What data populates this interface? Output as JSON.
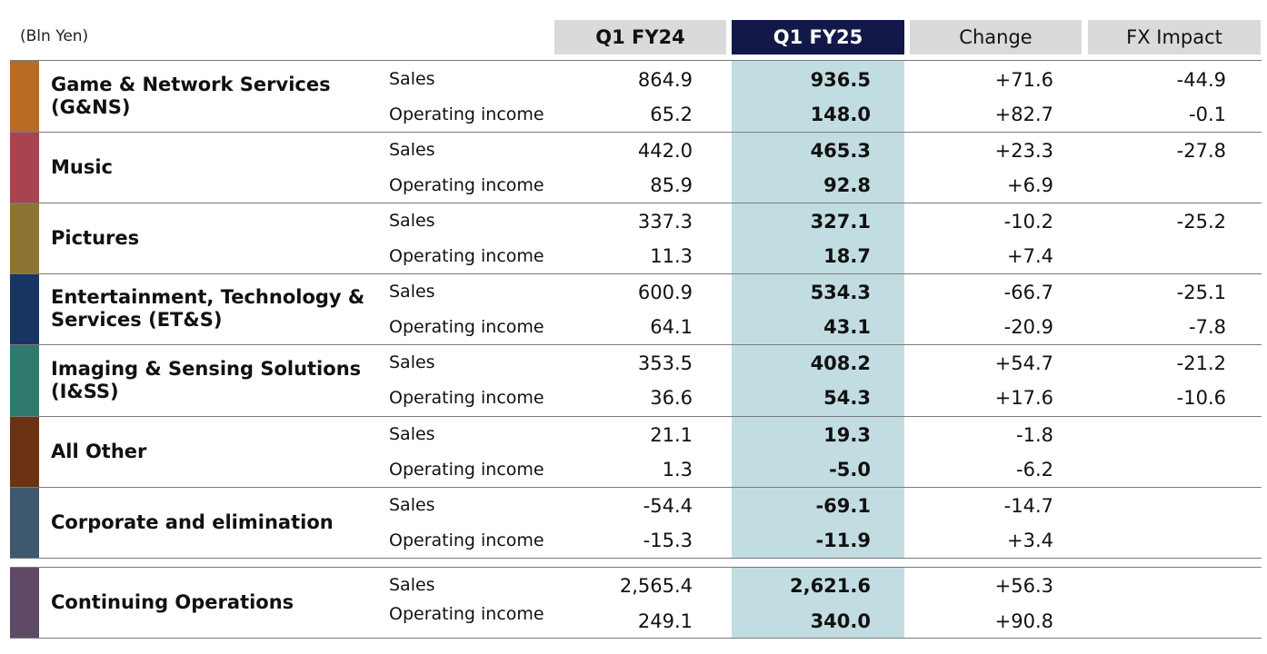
{
  "unit_label": "(Bln Yen)",
  "columns": [
    "Q1 FY24",
    "Q1 FY25",
    "Change",
    "FX Impact"
  ],
  "metrics": {
    "sales": "Sales",
    "oi": "Operating income"
  },
  "colors": {
    "header_bg": "#dadada",
    "header_current_bg": "#121848",
    "highlight_col": "#c2dde1",
    "seg_gns": "#b96b24",
    "seg_music": "#a8434f",
    "seg_pictures": "#8e7432",
    "seg_ets": "#183563",
    "seg_iss": "#2e7a6c",
    "seg_other": "#6b3314",
    "seg_corp": "#3e5870",
    "seg_cont": "#5e4a66"
  },
  "chart_data": {
    "type": "table",
    "title": "",
    "unit": "Bln Yen",
    "columns": [
      "Q1 FY24",
      "Q1 FY25",
      "Change",
      "FX Impact"
    ],
    "rows": [
      {
        "segment": "Game & Network Services (G&NS)",
        "segment_line1": "Game & Network Services",
        "segment_line2": "(G&NS)",
        "sales": [
          "864.9",
          "936.5",
          "+71.6",
          "-44.9"
        ],
        "oi": [
          "65.2",
          "148.0",
          "+82.7",
          "-0.1"
        ]
      },
      {
        "segment": "Music",
        "segment_line1": "Music",
        "segment_line2": "",
        "sales": [
          "442.0",
          "465.3",
          "+23.3",
          "-27.8"
        ],
        "oi": [
          "85.9",
          "92.8",
          "+6.9",
          ""
        ]
      },
      {
        "segment": "Pictures",
        "segment_line1": "Pictures",
        "segment_line2": "",
        "sales": [
          "337.3",
          "327.1",
          "-10.2",
          "-25.2"
        ],
        "oi": [
          "11.3",
          "18.7",
          "+7.4",
          ""
        ]
      },
      {
        "segment": "Entertainment, Technology & Services (ET&S)",
        "segment_line1": "Entertainment, Technology &",
        "segment_line2": "Services (ET&S)",
        "sales": [
          "600.9",
          "534.3",
          "-66.7",
          "-25.1"
        ],
        "oi": [
          "64.1",
          "43.1",
          "-20.9",
          "-7.8"
        ]
      },
      {
        "segment": "Imaging & Sensing Solutions (I&SS)",
        "segment_line1": "Imaging & Sensing Solutions",
        "segment_line2": "(I&SS)",
        "sales": [
          "353.5",
          "408.2",
          "+54.7",
          "-21.2"
        ],
        "oi": [
          "36.6",
          "54.3",
          "+17.6",
          "-10.6"
        ]
      },
      {
        "segment": "All Other",
        "segment_line1": "All Other",
        "segment_line2": "",
        "sales": [
          "21.1",
          "19.3",
          "-1.8",
          ""
        ],
        "oi": [
          "1.3",
          "-5.0",
          "-6.2",
          ""
        ]
      },
      {
        "segment": "Corporate and elimination",
        "segment_line1": "Corporate and elimination",
        "segment_line2": "",
        "sales": [
          "-54.4",
          "-69.1",
          "-14.7",
          ""
        ],
        "oi": [
          "-15.3",
          "-11.9",
          "+3.4",
          ""
        ]
      },
      {
        "segment": "Continuing Operations",
        "segment_line1": "Continuing Operations",
        "segment_line2": "",
        "sales": [
          "2,565.4",
          "2,621.6",
          "+56.3",
          ""
        ],
        "oi": [
          "249.1",
          "340.0",
          "+90.8",
          ""
        ]
      }
    ]
  }
}
